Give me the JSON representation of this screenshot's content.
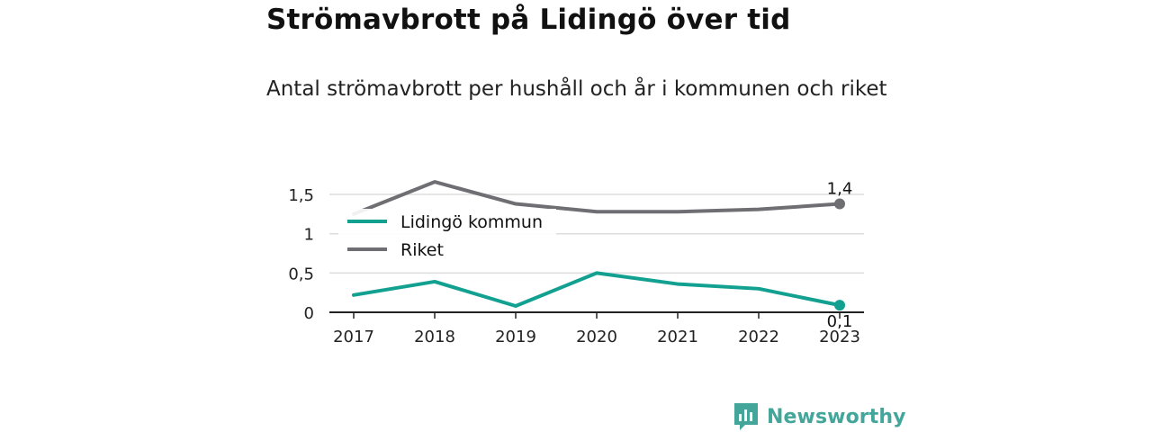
{
  "header": {
    "title": "Strömavbrott på Lidingö över tid",
    "subtitle": "Antal strömavbrott per hushåll och år i kommunen och riket"
  },
  "chart_data": {
    "type": "line",
    "categories": [
      "2017",
      "2018",
      "2019",
      "2020",
      "2021",
      "2022",
      "2023"
    ],
    "series": [
      {
        "name": "Lidingö kommun",
        "color": "#12a091",
        "values": [
          0.22,
          0.39,
          0.08,
          0.5,
          0.36,
          0.3,
          0.09
        ],
        "end_label": "0,1"
      },
      {
        "name": "Riket",
        "color": "#6e6e73",
        "values": [
          1.25,
          1.66,
          1.38,
          1.28,
          1.28,
          1.31,
          1.38
        ],
        "end_label": "1,4"
      }
    ],
    "yticks": [
      {
        "value": 0,
        "label": "0"
      },
      {
        "value": 0.5,
        "label": "0,5"
      },
      {
        "value": 1,
        "label": "1"
      },
      {
        "value": 1.5,
        "label": "1,5"
      }
    ],
    "ylim": [
      0,
      1.75
    ],
    "grid": true,
    "legend": "top-left",
    "xlabel": "",
    "ylabel": ""
  },
  "branding": {
    "logo_text": "Newsworthy",
    "logo_color": "#44a69a"
  }
}
